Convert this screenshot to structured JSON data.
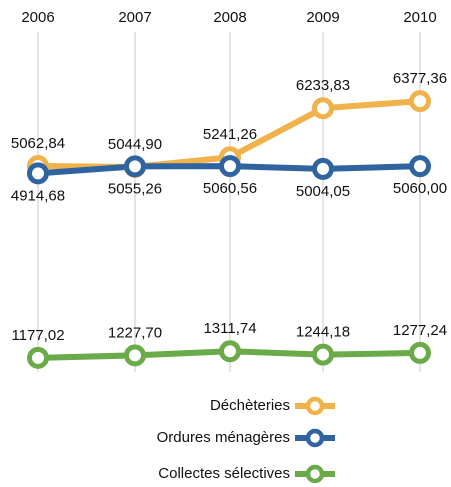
{
  "chart_data": {
    "type": "line",
    "categories": [
      "2006",
      "2007",
      "2008",
      "2009",
      "2010"
    ],
    "ylim": [
      0,
      8000
    ],
    "grid": true,
    "legend": "bottom",
    "series": [
      {
        "name": "Déchèteries",
        "color": "#f0b24a",
        "values": [
          5062.84,
          5044.9,
          5241.26,
          6233.83,
          6377.36
        ],
        "value_labels": [
          "5062,84",
          "5044,90",
          "5241,26",
          "6233,83",
          "6377,36"
        ]
      },
      {
        "name": "Ordures ménagères",
        "color": "#2f64a0",
        "values": [
          4914.68,
          5055.26,
          5060.56,
          5004.05,
          5060.0
        ],
        "value_labels": [
          "4914,68",
          "5055,26",
          "5060,56",
          "5004,05",
          "5060,00"
        ]
      },
      {
        "name": "Collectes sélectives",
        "color": "#6aaa48",
        "values": [
          1177.02,
          1227.7,
          1311.74,
          1244.18,
          1277.24
        ],
        "value_labels": [
          "1177,02",
          "1227,70",
          "1311,74",
          "1244,18",
          "1277,24"
        ]
      }
    ]
  }
}
